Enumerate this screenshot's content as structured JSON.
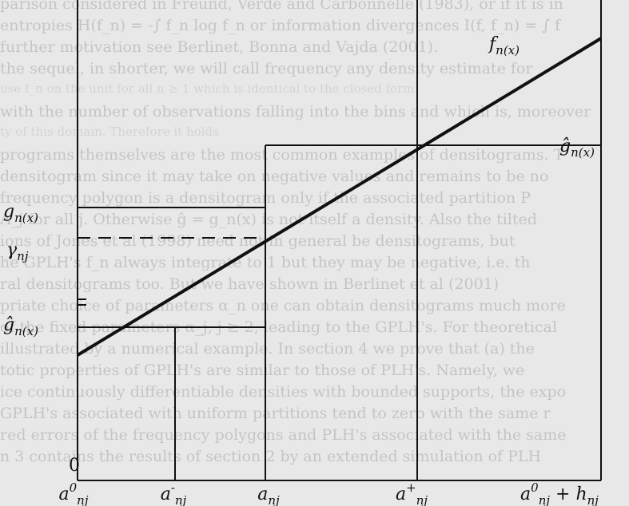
{
  "labels": {
    "f_n": "f_n(x)",
    "g_tilde_top": "ĝ_n(x)",
    "g_left": "g_n(x)",
    "gamma": "γ_nj",
    "g_tilde_left": "ĝ_n(x)",
    "zero": "0"
  },
  "x_ticks": [
    {
      "name": "a-nj-0",
      "text": "a^0_nj"
    },
    {
      "name": "a-nj-minus",
      "text": "a^-_nj"
    },
    {
      "name": "a-nj",
      "text": "a_nj"
    },
    {
      "name": "a-nj-plus",
      "text": "a^+_nj"
    },
    {
      "name": "a-nj-0-plus-h",
      "text": "a^0_nj + h_nj"
    }
  ],
  "show_through_text": [
    "parison considered in Freund, Verde and Carbonnelle (1983), or if it is in",
    "entropies H(f_n) = -∫ f_n log f_n or information divergences I(f, f_n) = ∫ f",
    "further motivation see Berlinet, Bonna and Vajda (2001).",
    "the sequel, in shorter, we will call frequency any density estimate for",
    "use f_n on the unit for all n ≥ 1 which is identical to the closed form",
    "with the number of observations falling into the bins and which is, moreover",
    "ty of this domain. Therefore it holds",
    "programs themselves are the most common examples of densitograms. T",
    "densitogram since it may take on negative values and remains to be no",
    "frequency polygon is a densitogram only if the associated partition P",
    "A_j for all j. Otherwise ĝ = g_n(x) is not itself a density. Also the tilted",
    "ions of Jones et al (1998) need not in general be densitograms, but",
    "he GPLH's f_n always integrate to 1 but they may be negative, i.e. th",
    "ral densitograms too. But we have shown in Berlinet et al (2001)",
    "priate choice of parameters α_n one can obtain densitograms much more",
    "of the fixed parameters α_j, j ≥ 2, leading to the GPLH's. For theoretical",
    "illustrated by a numerical example. In section 4 we prove that (a) the",
    "totic properties of GPLH's are similar to those of PLH's. Namely, we",
    "ice continuously differentiable densities with bounded supports, the expo",
    "GPLH's associated with uniform partitions tend to zero with the same r",
    "red errors of the frequency polygons and PLH's associated with the same",
    "n 3 contains the results of section 2 by an extended simulation of PLH"
  ]
}
